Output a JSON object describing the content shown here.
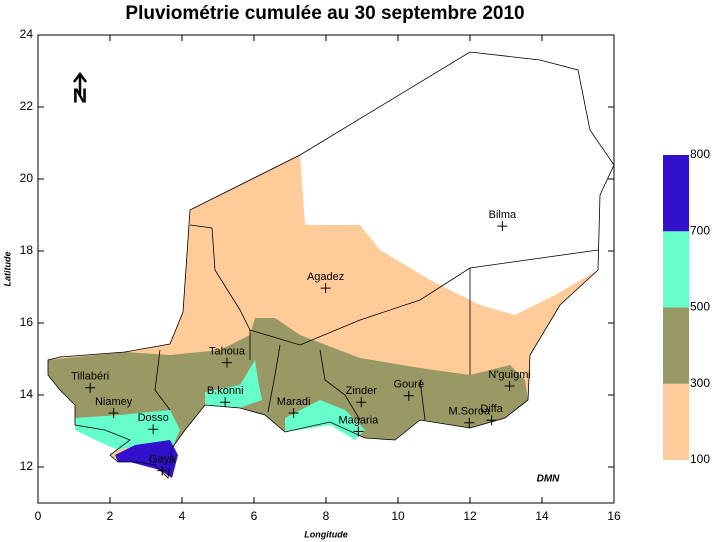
{
  "map": {
    "title": "Pluviométrie cumulée au 30 septembre 2010",
    "xlabel": "Longitude",
    "ylabel": "Latitude",
    "xlim": [
      0,
      16
    ],
    "ylim": [
      11,
      24
    ],
    "xticks": [
      0,
      2,
      4,
      6,
      8,
      10,
      12,
      14,
      16
    ],
    "yticks": [
      12,
      14,
      16,
      18,
      20,
      22,
      24
    ],
    "north": "N",
    "credit": "DMN",
    "cities": [
      {
        "name": "Tillabéri",
        "lon": 1.45,
        "lat": 14.2
      },
      {
        "name": "Niamey",
        "lon": 2.1,
        "lat": 13.5
      },
      {
        "name": "Dosso",
        "lon": 3.2,
        "lat": 13.05
      },
      {
        "name": "Gaya",
        "lon": 3.45,
        "lat": 11.9
      },
      {
        "name": "Tahoua",
        "lon": 5.25,
        "lat": 14.9
      },
      {
        "name": "B.konni",
        "lon": 5.2,
        "lat": 13.8
      },
      {
        "name": "Maradi",
        "lon": 7.1,
        "lat": 13.5
      },
      {
        "name": "Zinder",
        "lon": 8.98,
        "lat": 13.8
      },
      {
        "name": "Magaria",
        "lon": 8.9,
        "lat": 12.99
      },
      {
        "name": "Gouré",
        "lon": 10.3,
        "lat": 13.98
      },
      {
        "name": "N'guigmi",
        "lon": 13.1,
        "lat": 14.25
      },
      {
        "name": "Diffa",
        "lon": 12.6,
        "lat": 13.3
      },
      {
        "name": "M.Soroa",
        "lon": 11.98,
        "lat": 13.23
      },
      {
        "name": "Agadez",
        "lon": 7.99,
        "lat": 16.97
      },
      {
        "name": "Bilma",
        "lon": 12.9,
        "lat": 18.69
      }
    ],
    "legend": {
      "levels": [
        100,
        300,
        500,
        700,
        800
      ],
      "colors": [
        "#ffcc99",
        "#999966",
        "#66ffcc",
        "#3311cc"
      ]
    }
  }
}
